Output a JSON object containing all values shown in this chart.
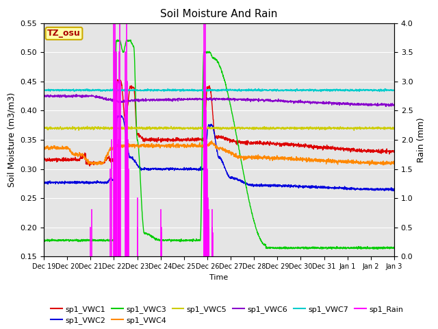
{
  "title": "Soil Moisture And Rain",
  "ylabel_left": "Soil Moisture (m3/m3)",
  "ylabel_right": "Rain (mm)",
  "xlabel": "Time",
  "ylim_left": [
    0.15,
    0.55
  ],
  "ylim_right": [
    0.0,
    4.0
  ],
  "background_color": "#e5e5e5",
  "annotation_text": "TZ_osu",
  "annotation_bg": "#ffffaa",
  "annotation_border": "#ccaa00",
  "annotation_text_color": "#aa0000",
  "series_colors": {
    "VWC1": "#dd0000",
    "VWC2": "#0000dd",
    "VWC3": "#00cc00",
    "VWC4": "#ff8800",
    "VWC5": "#cccc00",
    "VWC6": "#8800cc",
    "VWC7": "#00cccc",
    "Rain": "#ff00ff"
  },
  "tick_labels": [
    "Dec 19",
    "Dec 20",
    "Dec 21",
    "Dec 22",
    "Dec 23",
    "Dec 24",
    "Dec 25",
    "Dec 26",
    "Dec 27",
    "Dec 28",
    "Dec 29",
    "Dec 30",
    "Dec 31",
    "Jan 1",
    "Jan 2",
    "Jan 3"
  ]
}
